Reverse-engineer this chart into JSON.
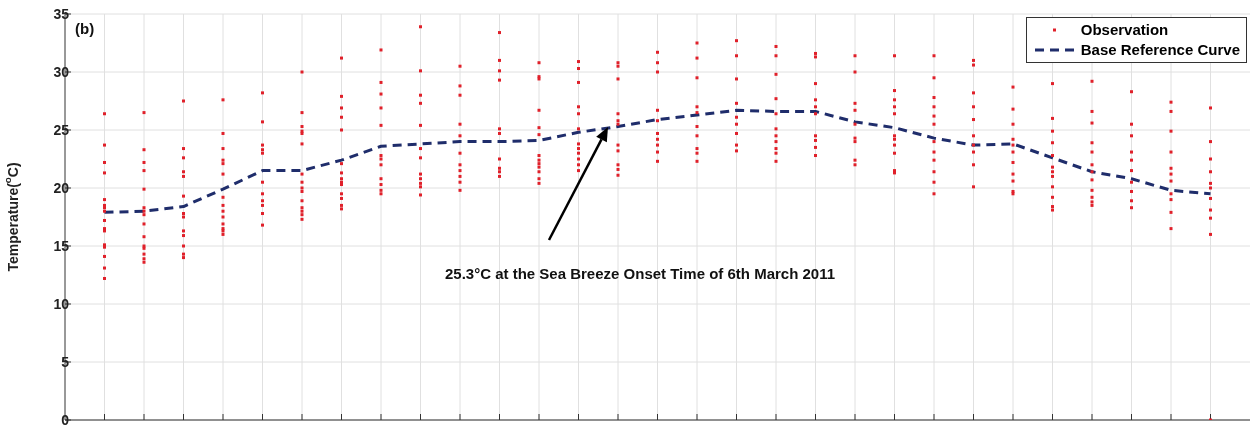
{
  "chart_data": {
    "type": "scatter",
    "ylabel": "Temperature($^{o}$C)",
    "categories": [
      null,
      null,
      null,
      null,
      null,
      null,
      null,
      null,
      null,
      null,
      null,
      null,
      null,
      null,
      null,
      null,
      null,
      null,
      null,
      null,
      null,
      null,
      null,
      null,
      null,
      null,
      null,
      null,
      null
    ],
    "ylim": [
      0,
      35
    ],
    "yticks": [
      0,
      5,
      10,
      15,
      20,
      25,
      30,
      35
    ],
    "grid": true,
    "legend": "top right",
    "tick_labels": "y",
    "marker": "square",
    "annotations": [
      "(b)",
      "25.3°C at the Sea Breeze Onset Time of 6th March 2011"
    ],
    "series": [
      {
        "name": "Observation",
        "color": "#e0202a",
        "values": [
          26.4,
          26.5,
          27.5,
          27.6,
          28.2,
          30.0,
          31.2,
          31.9,
          33.9,
          30.5,
          33.4,
          30.8,
          30.9,
          30.8,
          31.7,
          32.5,
          32.7,
          32.2,
          31.6,
          31.4,
          31.4,
          31.4,
          31.0,
          28.7,
          29.0,
          29.2,
          28.3,
          27.4,
          26.9
        ]
      },
      {
        "color": "#e0202a",
        "values": [
          23.7,
          23.3,
          23.4,
          24.7,
          25.7,
          26.5,
          27.9,
          29.1,
          30.1,
          28.8,
          31.0,
          29.6,
          30.3,
          30.5,
          30.8,
          31.2,
          31.4,
          31.4,
          31.3,
          30.0,
          28.4,
          29.5,
          30.6,
          26.8,
          26.0,
          26.6,
          25.5,
          26.6,
          24.0
        ]
      },
      {
        "color": "#e0202a",
        "values": [
          22.2,
          22.2,
          22.6,
          23.4,
          23.7,
          25.3,
          26.9,
          28.1,
          28.0,
          28.0,
          30.1,
          29.4,
          29.1,
          29.4,
          30.0,
          29.5,
          29.4,
          29.8,
          29.0,
          27.3,
          27.6,
          27.8,
          28.2,
          25.5,
          24.9,
          25.6,
          24.5,
          24.9,
          22.5
        ]
      },
      {
        "color": "#e0202a",
        "values": [
          21.3,
          21.5,
          21.4,
          22.4,
          23.3,
          24.9,
          26.1,
          26.9,
          27.3,
          25.5,
          29.3,
          26.7,
          27.0,
          26.4,
          26.7,
          27.0,
          27.3,
          27.7,
          27.6,
          26.7,
          27.0,
          27.0,
          27.0,
          24.2,
          23.9,
          23.9,
          23.1,
          23.1,
          21.4
        ]
      },
      {
        "color": "#e0202a",
        "values": [
          19.0,
          19.9,
          21.0,
          22.1,
          23.0,
          24.7,
          25.0,
          25.4,
          25.4,
          24.5,
          25.1,
          25.2,
          26.4,
          25.8,
          25.8,
          26.5,
          26.1,
          26.4,
          27.0,
          25.5,
          26.4,
          26.2,
          25.9,
          23.7,
          22.8,
          23.1,
          22.4,
          21.7,
          20.4
        ]
      },
      {
        "color": "#e0202a",
        "values": [
          18.5,
          18.3,
          19.3,
          21.2,
          20.5,
          23.8,
          22.1,
          22.8,
          23.4,
          23.0,
          24.7,
          24.6,
          25.1,
          25.5,
          24.7,
          25.3,
          25.5,
          25.1,
          26.4,
          24.3,
          24.5,
          25.5,
          24.5,
          23.1,
          21.8,
          22.0,
          21.5,
          21.2,
          20.0
        ]
      },
      {
        "color": "#e0202a",
        "values": [
          18.3,
          18.0,
          17.8,
          19.2,
          19.5,
          21.2,
          21.3,
          22.5,
          22.6,
          22.0,
          22.5,
          22.8,
          23.8,
          23.7,
          24.2,
          24.5,
          24.7,
          24.5,
          24.5,
          24.0,
          24.2,
          24.0,
          23.7,
          22.2,
          21.4,
          21.4,
          20.5,
          20.6,
          19.1
        ]
      },
      {
        "color": "#e0202a",
        "values": [
          18.0,
          17.7,
          17.5,
          18.5,
          18.9,
          20.5,
          20.8,
          22.0,
          21.2,
          21.5,
          21.7,
          22.4,
          23.4,
          23.2,
          23.7,
          23.4,
          23.7,
          24.0,
          24.1,
          22.4,
          23.7,
          23.1,
          23.1,
          21.2,
          21.0,
          20.7,
          19.7,
          19.5,
          18.1
        ]
      },
      {
        "color": "#e0202a",
        "values": [
          17.2,
          16.9,
          16.3,
          18.0,
          18.5,
          20.0,
          20.5,
          20.8,
          20.8,
          21.0,
          21.4,
          22.1,
          23.0,
          22.0,
          23.1,
          23.0,
          23.2,
          23.4,
          23.5,
          22.0,
          23.0,
          22.4,
          22.0,
          20.6,
          20.1,
          19.8,
          18.9,
          19.0,
          17.4
        ]
      },
      {
        "color": "#e0202a",
        "values": [
          16.5,
          15.8,
          15.9,
          17.5,
          17.8,
          19.7,
          20.3,
          20.3,
          20.4,
          20.5,
          21.0,
          21.8,
          22.5,
          21.6,
          22.3,
          22.3,
          null,
          23.0,
          22.8,
          null,
          21.5,
          21.4,
          20.1,
          19.7,
          19.2,
          19.2,
          18.3,
          17.9,
          16.0
        ]
      },
      {
        "color": "#e0202a",
        "values": [
          16.3,
          15.0,
          15.0,
          16.9,
          16.8,
          18.9,
          19.5,
          19.8,
          20.1,
          19.8,
          null,
          21.4,
          22.0,
          21.1,
          null,
          null,
          null,
          22.3,
          null,
          null,
          21.3,
          20.5,
          null,
          19.5,
          18.4,
          18.8,
          null,
          16.5,
          0
        ]
      },
      {
        "color": "#e0202a",
        "values": [
          15.1,
          14.8,
          14.3,
          16.5,
          null,
          18.3,
          19.1,
          19.5,
          19.4,
          null,
          null,
          20.8,
          21.5,
          null,
          null,
          null,
          null,
          null,
          null,
          null,
          null,
          19.5,
          null,
          null,
          18.1,
          18.5,
          null,
          null,
          null
        ]
      },
      {
        "color": "#e0202a",
        "values": [
          14.9,
          14.3,
          14.0,
          16.3,
          null,
          18.0,
          18.5,
          null,
          null,
          null,
          null,
          20.4,
          null,
          null,
          null,
          null,
          null,
          null,
          null,
          null,
          null,
          null,
          null,
          null,
          null,
          null,
          null,
          null,
          null
        ]
      },
      {
        "color": "#e0202a",
        "values": [
          14.1,
          13.9,
          null,
          16.0,
          null,
          17.7,
          18.2,
          null,
          null,
          null,
          null,
          null,
          null,
          null,
          null,
          null,
          null,
          null,
          null,
          null,
          null,
          null,
          null,
          null,
          null,
          null,
          null,
          null,
          null
        ]
      },
      {
        "color": "#e0202a",
        "values": [
          13.1,
          13.6,
          null,
          null,
          null,
          17.3,
          null,
          null,
          null,
          null,
          null,
          null,
          null,
          null,
          null,
          null,
          null,
          null,
          null,
          null,
          null,
          null,
          null,
          null,
          null,
          null,
          null,
          null,
          null
        ]
      },
      {
        "color": "#e0202a",
        "values": [
          12.2,
          null,
          null,
          null,
          null,
          null,
          null,
          null,
          null,
          null,
          null,
          null,
          null,
          null,
          null,
          null,
          null,
          null,
          null,
          null,
          null,
          null,
          null,
          null,
          null,
          null,
          null,
          null,
          null
        ]
      },
      {
        "name": "Base Reference Curve",
        "type": "line",
        "color": "#1f2d6b",
        "line_style": "dashed",
        "marker": "none",
        "values": [
          17.9,
          18.0,
          18.4,
          19.9,
          21.5,
          21.5,
          22.4,
          23.6,
          23.8,
          24.0,
          24.0,
          24.1,
          24.8,
          25.3,
          25.9,
          26.3,
          26.7,
          26.6,
          26.6,
          25.7,
          25.2,
          24.3,
          23.7,
          23.8,
          22.6,
          21.4,
          20.8,
          19.8,
          19.5
        ]
      }
    ]
  }
}
